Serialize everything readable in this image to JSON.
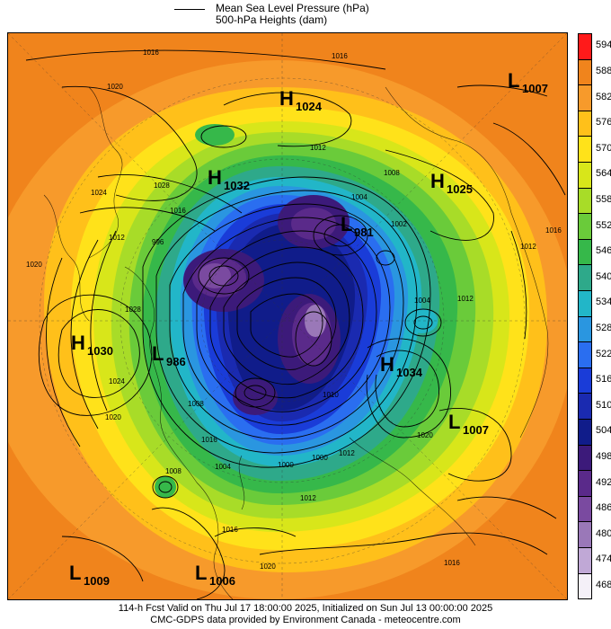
{
  "legend": {
    "line_label": "Mean Sea Level Pressure (hPa)",
    "fill_label": "500-hPa Heights (dam)"
  },
  "colorbar": {
    "levels": [
      "594",
      "588",
      "582",
      "576",
      "570",
      "564",
      "558",
      "552",
      "546",
      "540",
      "534",
      "528",
      "522",
      "516",
      "510",
      "504",
      "498",
      "492",
      "486",
      "480",
      "474",
      "468"
    ],
    "colors": [
      "#ff1a1a",
      "#f0841c",
      "#f79a2b",
      "#ffc01a",
      "#ffe21a",
      "#d8e61a",
      "#a8dc28",
      "#6acb3a",
      "#36b84a",
      "#2ea98a",
      "#22b6c8",
      "#2a96e0",
      "#2a6ef0",
      "#1a3cd8",
      "#1a2ab0",
      "#101c8a",
      "#3c1a7a",
      "#5a2a8a",
      "#7a4aa0",
      "#9a78b8",
      "#c0a8d6",
      "#f4f0f8"
    ]
  },
  "pressure_centers": [
    {
      "type": "L",
      "value": "1007"
    },
    {
      "type": "H",
      "value": "1024"
    },
    {
      "type": "H",
      "value": "1032"
    },
    {
      "type": "H",
      "value": "1025"
    },
    {
      "type": "L",
      "value": "981"
    },
    {
      "type": "H",
      "value": "1030"
    },
    {
      "type": "L",
      "value": "986"
    },
    {
      "type": "H",
      "value": "1034"
    },
    {
      "type": "L",
      "value": "1007"
    },
    {
      "type": "L",
      "value": "1009"
    },
    {
      "type": "L",
      "value": "1006"
    }
  ],
  "isobar_labels": [
    "1016",
    "1016",
    "1020",
    "1024",
    "1028",
    "1016",
    "1012",
    "1012",
    "1008",
    "1004",
    "1002",
    "1004",
    "1012",
    "1012",
    "1016",
    "1020",
    "1020",
    "1024",
    "1028",
    "996",
    "1008",
    "1016",
    "1004",
    "1000",
    "1000",
    "1012",
    "1012",
    "1020",
    "1008",
    "1016",
    "1020",
    "1016",
    "1010"
  ],
  "footer": {
    "line1": "114-h Fcst Valid on Thu Jul 17 18:00:00 2025, Initialized on Sun Jul 13 00:00:00 2025",
    "line2": "CMC-GDPS data provided by Environment Canada - meteocentre.com"
  }
}
